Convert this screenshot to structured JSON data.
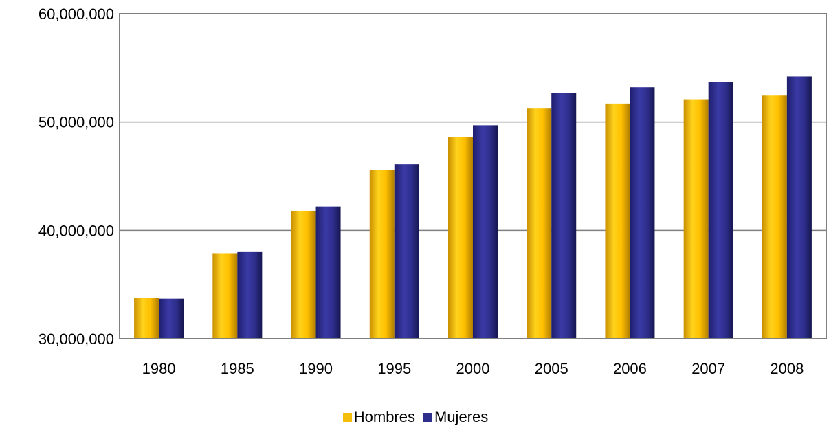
{
  "chart_data": {
    "type": "bar",
    "title": "",
    "xlabel": "",
    "ylabel": "",
    "categories": [
      "1980",
      "1985",
      "1990",
      "1995",
      "2000",
      "2005",
      "2006",
      "2007",
      "2008"
    ],
    "series": [
      {
        "name": "Hombres",
        "color": "#F5BE0A",
        "values": [
          33800000,
          37900000,
          41800000,
          45600000,
          48600000,
          51300000,
          51700000,
          52100000,
          52500000
        ]
      },
      {
        "name": "Mujeres",
        "color": "#2E2E8C",
        "values": [
          33700000,
          38000000,
          42200000,
          46100000,
          49700000,
          52700000,
          53200000,
          53700000,
          54200000
        ]
      }
    ],
    "ylim": [
      30000000,
      60000000
    ],
    "yticks": [
      30000000,
      40000000,
      50000000,
      60000000
    ],
    "ytick_labels": [
      "30,000,000",
      "40,000,000",
      "50,000,000",
      "60,000,000"
    ],
    "grid": true,
    "legend_position": "bottom"
  }
}
